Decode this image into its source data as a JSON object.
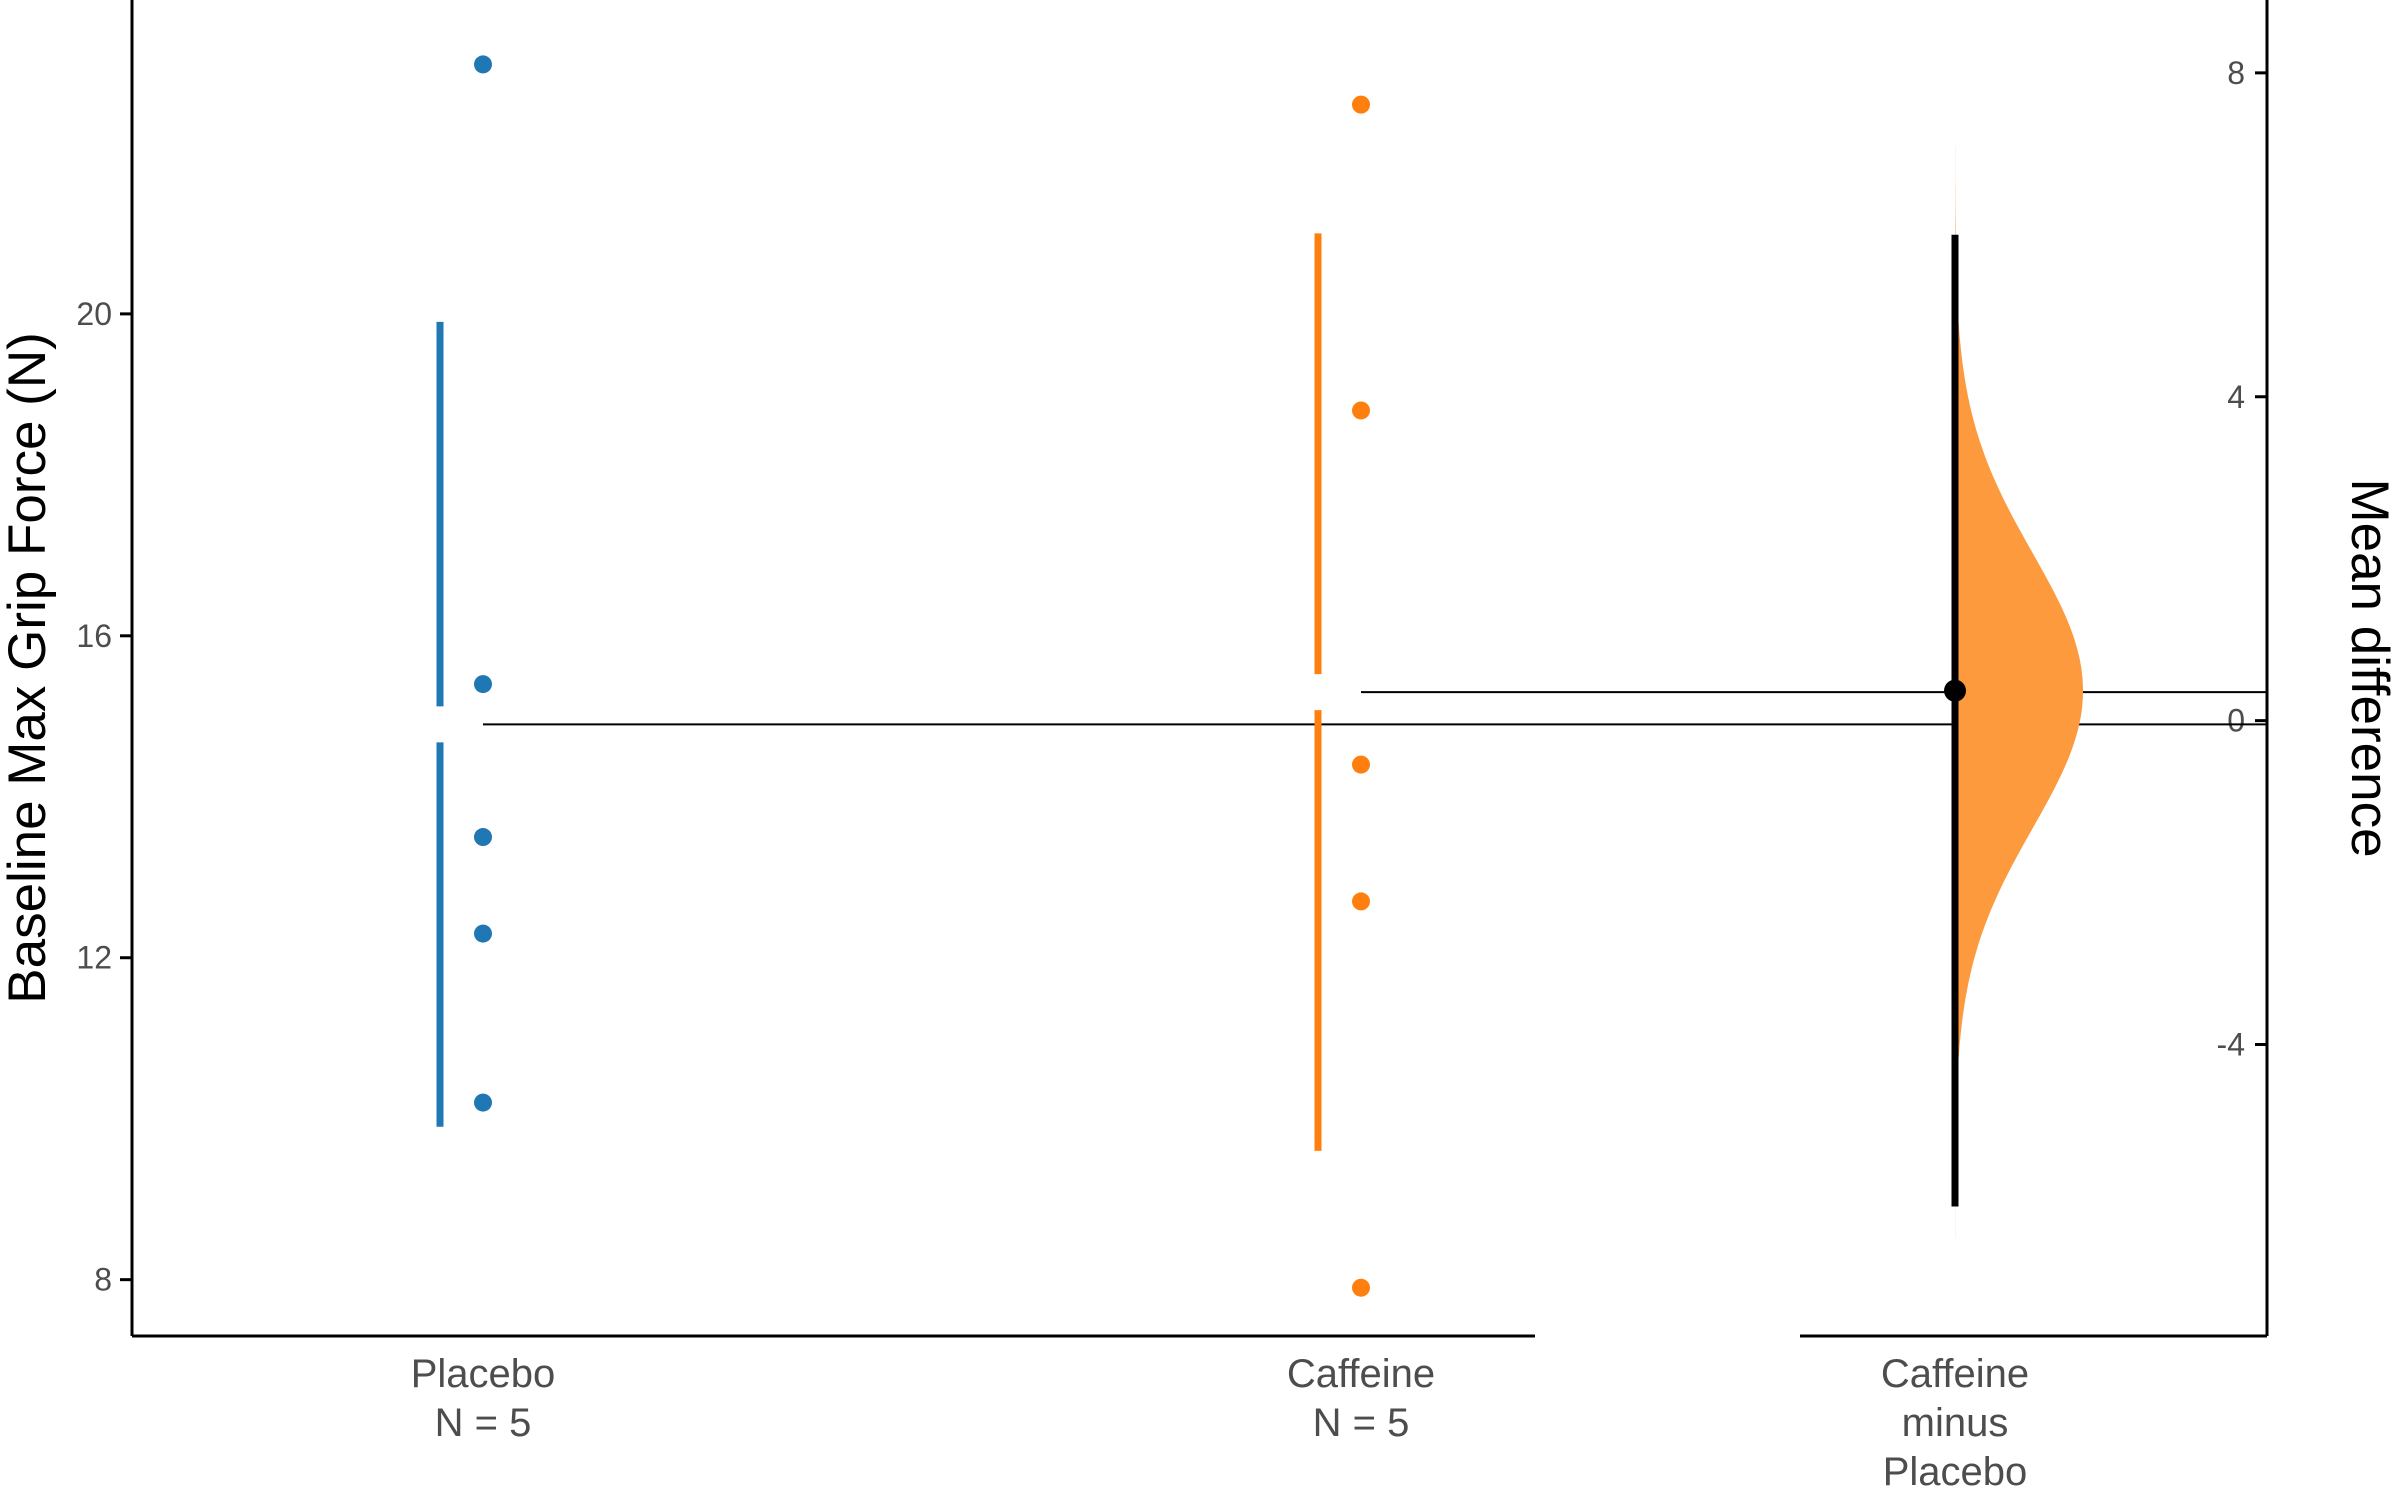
{
  "chart_data": {
    "type": "scatter",
    "subtype": "estimation-plot (Gardner-Altman)",
    "title": "",
    "ylabel": "Baseline Max Grip Force (N)",
    "ylabel_right": "Mean difference",
    "ylim": [
      7.3,
      23.9
    ],
    "ylim_right": [
      -7.6,
      8.9
    ],
    "yticks": [
      8,
      12,
      16,
      20
    ],
    "yticks_right": [
      -4,
      0,
      4,
      8
    ],
    "yticks_right_labels": [
      "-4",
      "0",
      "4",
      "8"
    ],
    "grid": false,
    "groups": [
      {
        "name": "Placebo",
        "label_lines": [
          "Placebo",
          "N = 5"
        ],
        "color": "#1f77b4",
        "points": [
          23.1,
          15.4,
          13.5,
          12.3,
          10.2
        ],
        "mean": 14.9,
        "sd_lower": 9.9,
        "sd_upper": 19.9
      },
      {
        "name": "Caffeine",
        "label_lines": [
          "Caffeine",
          "N = 5"
        ],
        "color": "#ff7f0e",
        "points": [
          22.6,
          18.8,
          14.4,
          12.7,
          7.9
        ],
        "mean": 15.3,
        "sd_lower": 9.6,
        "sd_upper": 21.0
      }
    ],
    "difference": {
      "label_lines": [
        "Caffeine",
        "minus",
        "Placebo"
      ],
      "estimate": 0.37,
      "ci": [
        -6.0,
        6.0
      ],
      "color": "#fd9a3e",
      "distribution_sd": 1.7
    }
  }
}
